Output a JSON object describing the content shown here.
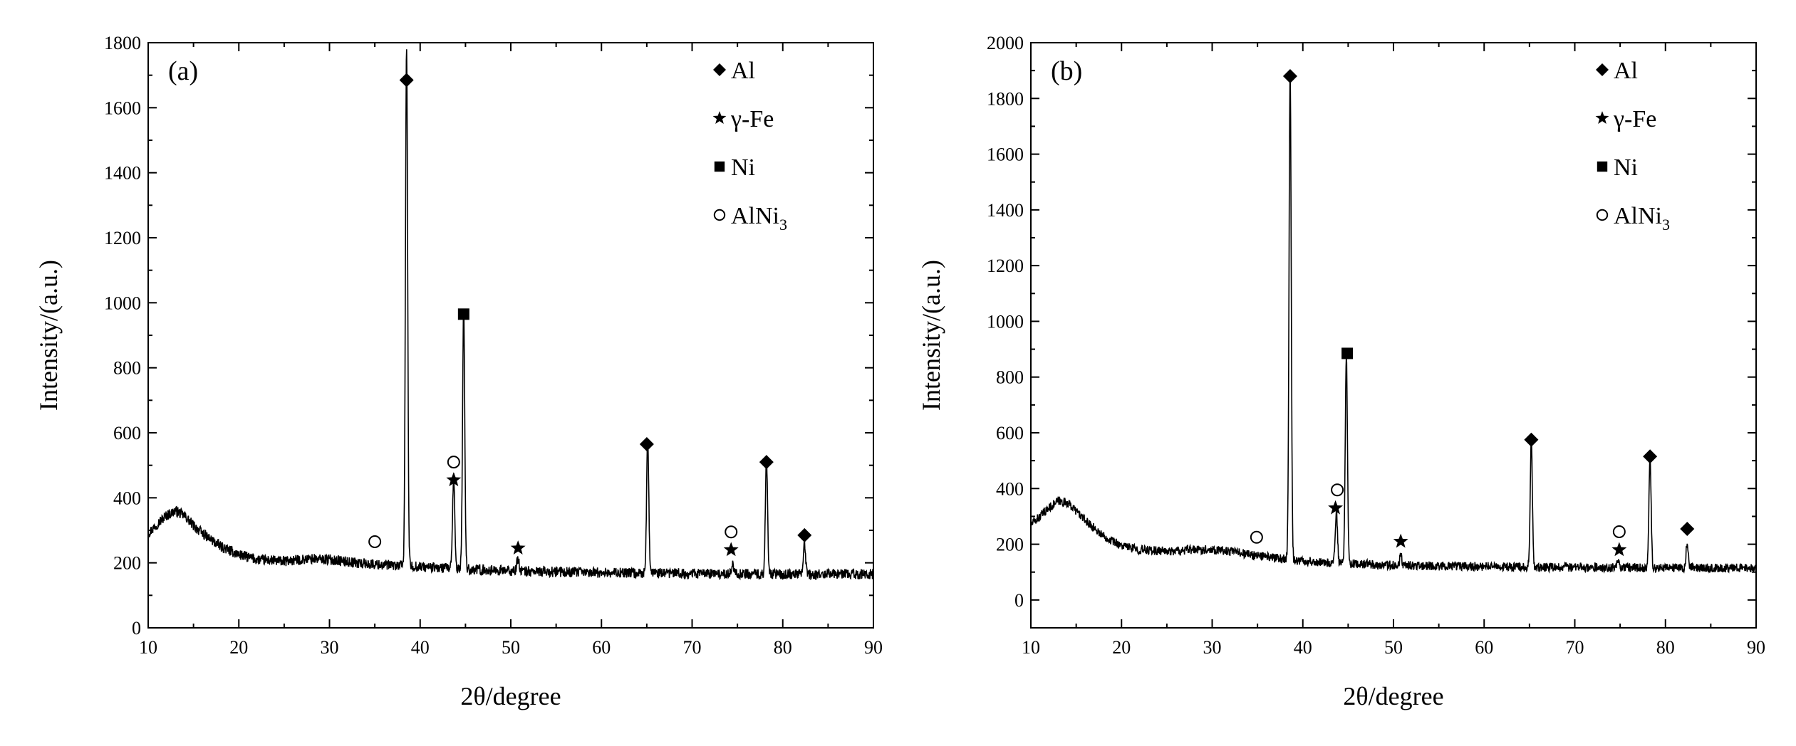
{
  "chart_data": [
    {
      "type": "line",
      "panel_label": "(a)",
      "xlabel": "2θ/degree",
      "ylabel": "Intensity/(a.u.)",
      "xlim": [
        10,
        90
      ],
      "ylim": [
        0,
        1800
      ],
      "xticks": [
        10,
        20,
        30,
        40,
        50,
        60,
        70,
        80,
        90
      ],
      "yticks": [
        0,
        200,
        400,
        600,
        800,
        1000,
        1200,
        1400,
        1600,
        1800
      ],
      "legend": [
        {
          "marker": "diamond",
          "label": "Al"
        },
        {
          "marker": "star",
          "label": "γ-Fe"
        },
        {
          "marker": "square",
          "label": "Ni"
        },
        {
          "marker": "circle",
          "label": "AlNi",
          "subscript": "3"
        }
      ],
      "series": [
        {
          "name": "XRD pattern",
          "background": [
            [
              10,
              290
            ],
            [
              11,
              320
            ],
            [
              12,
              345
            ],
            [
              13,
              360
            ],
            [
              14,
              345
            ],
            [
              15,
              315
            ],
            [
              16,
              290
            ],
            [
              18,
              250
            ],
            [
              20,
              225
            ],
            [
              22,
              210
            ],
            [
              25,
              205
            ],
            [
              28,
              212
            ],
            [
              30,
              210
            ],
            [
              33,
              200
            ],
            [
              35,
              195
            ],
            [
              37,
              192
            ],
            [
              40,
              188
            ],
            [
              45,
              180
            ],
            [
              50,
              175
            ],
            [
              55,
              172
            ],
            [
              60,
              170
            ],
            [
              65,
              168
            ],
            [
              70,
              167
            ],
            [
              75,
              166
            ],
            [
              80,
              165
            ],
            [
              85,
              165
            ],
            [
              90,
              165
            ]
          ],
          "peaks": [
            [
              38.5,
              1600
            ],
            [
              43.7,
              280
            ],
            [
              44.8,
              800
            ],
            [
              50.8,
              40
            ],
            [
              65.1,
              410
            ],
            [
              74.5,
              30
            ],
            [
              78.2,
              355
            ],
            [
              82.4,
              95
            ]
          ]
        }
      ],
      "annotations": [
        {
          "marker": "circle",
          "x": 35.0,
          "y": 265
        },
        {
          "marker": "diamond",
          "x": 38.5,
          "y": 1685
        },
        {
          "marker": "circle",
          "x": 43.7,
          "y": 510
        },
        {
          "marker": "star",
          "x": 43.7,
          "y": 455
        },
        {
          "marker": "square",
          "x": 44.8,
          "y": 965
        },
        {
          "marker": "star",
          "x": 50.8,
          "y": 245
        },
        {
          "marker": "diamond",
          "x": 65.0,
          "y": 565
        },
        {
          "marker": "circle",
          "x": 74.3,
          "y": 295
        },
        {
          "marker": "star",
          "x": 74.3,
          "y": 240
        },
        {
          "marker": "diamond",
          "x": 78.2,
          "y": 510
        },
        {
          "marker": "diamond",
          "x": 82.4,
          "y": 285
        }
      ]
    },
    {
      "type": "line",
      "panel_label": "(b)",
      "xlabel": "2θ/degree",
      "ylabel": "Intensity/(a.u.)",
      "xlim": [
        10,
        90
      ],
      "ylim": [
        -100,
        2000
      ],
      "xticks": [
        10,
        20,
        30,
        40,
        50,
        60,
        70,
        80,
        90
      ],
      "yticks": [
        0,
        200,
        400,
        600,
        800,
        1000,
        1200,
        1400,
        1600,
        1800,
        2000
      ],
      "legend": [
        {
          "marker": "diamond",
          "label": "Al"
        },
        {
          "marker": "star",
          "label": "γ-Fe"
        },
        {
          "marker": "square",
          "label": "Ni"
        },
        {
          "marker": "circle",
          "label": "AlNi",
          "subscript": "3"
        }
      ],
      "series": [
        {
          "name": "XRD pattern",
          "background": [
            [
              10,
              270
            ],
            [
              11,
              300
            ],
            [
              12,
              330
            ],
            [
              13,
              355
            ],
            [
              14,
              350
            ],
            [
              15,
              320
            ],
            [
              16,
              285
            ],
            [
              18,
              230
            ],
            [
              20,
              195
            ],
            [
              22,
              180
            ],
            [
              25,
              175
            ],
            [
              28,
              180
            ],
            [
              30,
              182
            ],
            [
              33,
              170
            ],
            [
              35,
              158
            ],
            [
              37,
              150
            ],
            [
              40,
              140
            ],
            [
              45,
              130
            ],
            [
              50,
              125
            ],
            [
              55,
              122
            ],
            [
              60,
              120
            ],
            [
              65,
              118
            ],
            [
              70,
              117
            ],
            [
              75,
              116
            ],
            [
              80,
              115
            ],
            [
              85,
              115
            ],
            [
              90,
              115
            ]
          ],
          "peaks": [
            [
              38.6,
              1750
            ],
            [
              43.7,
              180
            ],
            [
              44.8,
              740
            ],
            [
              50.8,
              35
            ],
            [
              65.2,
              450
            ],
            [
              74.8,
              25
            ],
            [
              78.3,
              395
            ],
            [
              82.4,
              95
            ]
          ]
        }
      ],
      "annotations": [
        {
          "marker": "circle",
          "x": 34.9,
          "y": 225
        },
        {
          "marker": "diamond",
          "x": 38.6,
          "y": 1880
        },
        {
          "marker": "circle",
          "x": 43.8,
          "y": 395
        },
        {
          "marker": "star",
          "x": 43.6,
          "y": 330
        },
        {
          "marker": "square",
          "x": 44.9,
          "y": 885
        },
        {
          "marker": "star",
          "x": 50.8,
          "y": 210
        },
        {
          "marker": "diamond",
          "x": 65.2,
          "y": 575
        },
        {
          "marker": "circle",
          "x": 74.9,
          "y": 245
        },
        {
          "marker": "star",
          "x": 74.9,
          "y": 180
        },
        {
          "marker": "diamond",
          "x": 78.3,
          "y": 515
        },
        {
          "marker": "diamond",
          "x": 82.4,
          "y": 255
        }
      ]
    }
  ]
}
